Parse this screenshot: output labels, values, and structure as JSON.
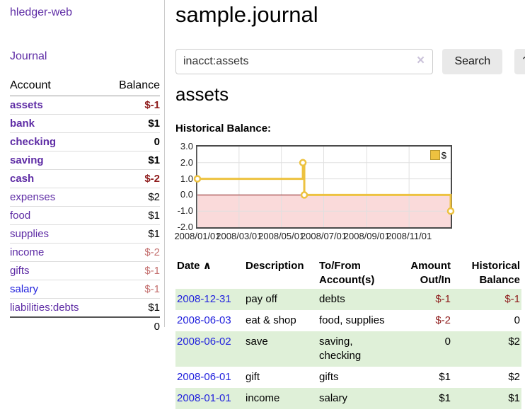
{
  "sidebar": {
    "brand": "hledger-web",
    "journal_link": "Journal",
    "accounts_table": {
      "account_header": "Account",
      "balance_header": "Balance",
      "rows": [
        {
          "name": "assets",
          "depth": 1,
          "bold": true,
          "blue": false,
          "balance": "$-1",
          "style": "neg"
        },
        {
          "name": "bank",
          "depth": 2,
          "bold": true,
          "blue": false,
          "balance": "$1",
          "style": ""
        },
        {
          "name": "checking",
          "depth": 3,
          "bold": true,
          "blue": false,
          "balance": "0",
          "style": ""
        },
        {
          "name": "saving",
          "depth": 3,
          "bold": true,
          "blue": false,
          "balance": "$1",
          "style": ""
        },
        {
          "name": "cash",
          "depth": 2,
          "bold": true,
          "blue": false,
          "balance": "$-2",
          "style": "neg"
        },
        {
          "name": "expenses",
          "depth": 1,
          "bold": false,
          "blue": false,
          "balance": "$2",
          "style": ""
        },
        {
          "name": "food",
          "depth": 2,
          "bold": false,
          "blue": false,
          "balance": "$1",
          "style": ""
        },
        {
          "name": "supplies",
          "depth": 2,
          "bold": false,
          "blue": false,
          "balance": "$1",
          "style": ""
        },
        {
          "name": "income",
          "depth": 1,
          "bold": false,
          "blue": false,
          "balance": "$-2",
          "style": "soft"
        },
        {
          "name": "gifts",
          "depth": 2,
          "bold": false,
          "blue": false,
          "balance": "$-1",
          "style": "soft"
        },
        {
          "name": "salary",
          "depth": 2,
          "bold": false,
          "blue": true,
          "balance": "$-1",
          "style": "soft"
        },
        {
          "name": "liabilities:debts",
          "depth": 1,
          "bold": false,
          "blue": false,
          "balance": "$1",
          "style": ""
        }
      ],
      "total": "0"
    }
  },
  "main": {
    "title": "sample.journal",
    "search": {
      "value": "inacct:assets",
      "clear_icon": "×",
      "search_button": "Search",
      "help_button": "?"
    },
    "account_heading": "assets",
    "chart_label": "Historical Balance:",
    "register_table": {
      "headers": {
        "date": "Date",
        "sort_caret": "∧",
        "description": "Description",
        "tofrom_1": "To/From",
        "tofrom_2": "Account(s)",
        "amount_1": "Amount",
        "amount_2": "Out/In",
        "balance_1": "Historical",
        "balance_2": "Balance"
      },
      "rows": [
        {
          "date": "2008-12-31",
          "description": "pay off",
          "accounts": "debts",
          "amount": "$-1",
          "amount_neg": true,
          "balance": "$-1",
          "balance_neg": true,
          "shaded": true
        },
        {
          "date": "2008-06-03",
          "description": "eat & shop",
          "accounts": "food, supplies",
          "amount": "$-2",
          "amount_neg": true,
          "balance": "0",
          "balance_neg": false,
          "shaded": false
        },
        {
          "date": "2008-06-02",
          "description": "save",
          "accounts": "saving, checking",
          "amount": "0",
          "amount_neg": false,
          "balance": "$2",
          "balance_neg": false,
          "shaded": true
        },
        {
          "date": "2008-06-01",
          "description": "gift",
          "accounts": "gifts",
          "amount": "$1",
          "amount_neg": false,
          "balance": "$2",
          "balance_neg": false,
          "shaded": false
        },
        {
          "date": "2008-01-01",
          "description": "income",
          "accounts": "salary",
          "amount": "$1",
          "amount_neg": false,
          "balance": "$1",
          "balance_neg": false,
          "shaded": true
        }
      ]
    }
  },
  "chart_data": {
    "type": "line",
    "title": "Historical Balance:",
    "series": [
      {
        "name": "$",
        "step": true,
        "points": [
          [
            "2008-01-01",
            1.0
          ],
          [
            "2008-06-01",
            2.0
          ],
          [
            "2008-06-03",
            0.0
          ],
          [
            "2008-12-31",
            -1.0
          ]
        ]
      }
    ],
    "x_range": [
      "2008-01-01",
      "2008-12-31"
    ],
    "x_ticks": [
      "2008/01/01",
      "2008/03/01",
      "2008/05/01",
      "2008/07/01",
      "2008/09/01",
      "2008/11/01"
    ],
    "y_ticks": [
      3.0,
      2.0,
      1.0,
      0.0,
      -1.0,
      -2.0
    ],
    "ylim": [
      -2.0,
      3.0
    ],
    "grid": true,
    "legend": {
      "label": "$",
      "position": "top-right"
    },
    "colors": {
      "line": "#edc240",
      "negative_region": "#fadada",
      "zero_line": "#8b1a1a",
      "gridline": "#e0e0e0",
      "plot_border": "#4a4a4a"
    }
  },
  "colors": {
    "link_purple": "#5e2ca5",
    "link_blue": "#2222dd",
    "negative": "#8e1b1b",
    "negative_soft": "#c4706f",
    "row_stripe_green": "#dff0d8",
    "button_gray": "#e9e9e9"
  }
}
